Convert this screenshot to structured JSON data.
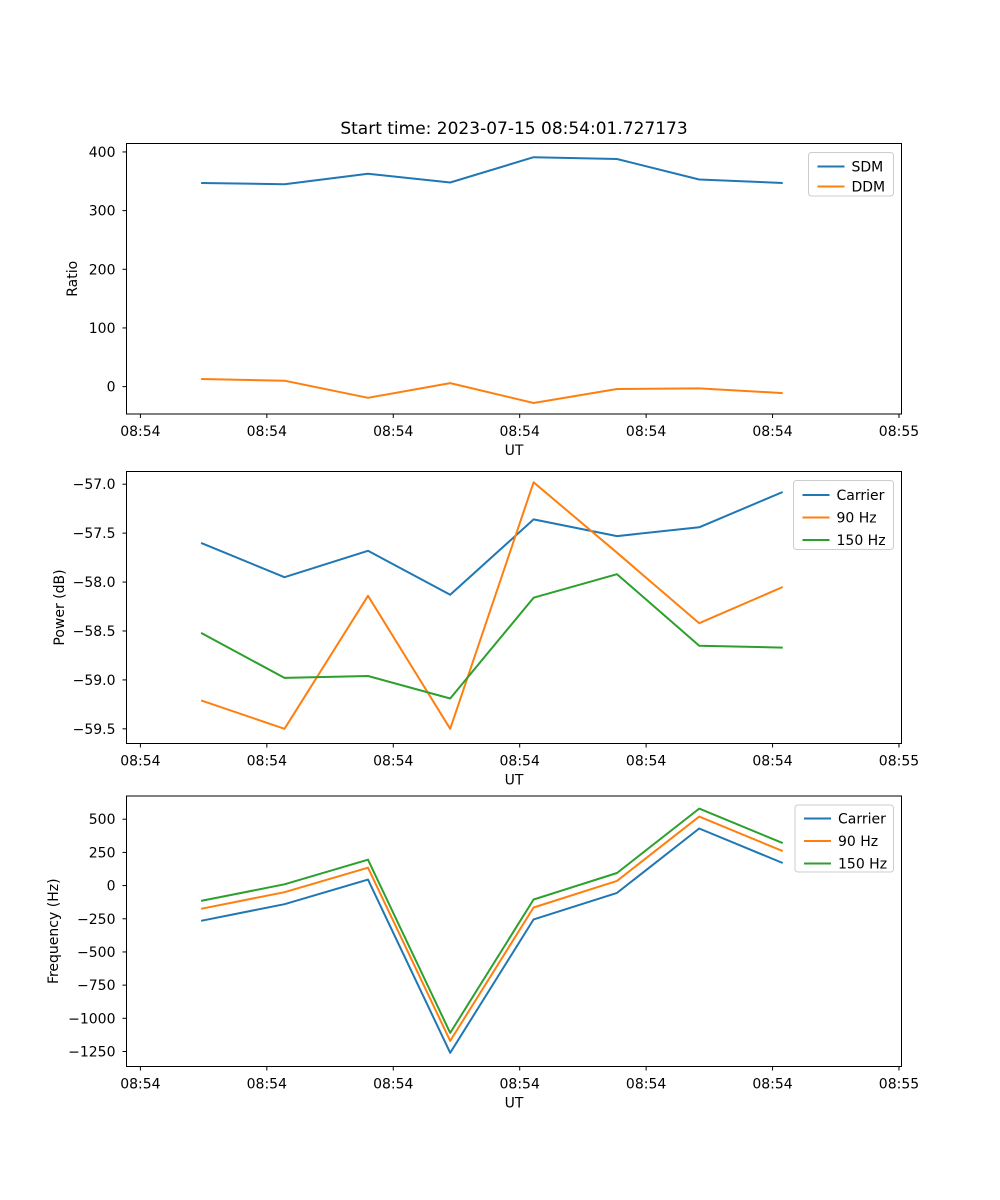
{
  "figure": {
    "title": "Start time: 2023-07-15 08:54:01.727173",
    "background": "#ffffff"
  },
  "colors": {
    "blue": "#1f77b4",
    "orange": "#ff7f0e",
    "green": "#2ca02c"
  },
  "chart_data": [
    {
      "type": "line",
      "title": "Start time: 2023-07-15 08:54:01.727173",
      "xlabel": "UT",
      "ylabel": "Ratio",
      "grid": false,
      "legend_position": "top-right",
      "x_seconds": [
        4.8,
        11.4,
        18.0,
        24.5,
        31.1,
        37.7,
        44.2,
        50.8
      ],
      "xlim_seconds": [
        -1.1,
        60.2
      ],
      "xtick_seconds": [
        0,
        10,
        20,
        30,
        40,
        50,
        60
      ],
      "xtick_labels": [
        "08:54",
        "08:54",
        "08:54",
        "08:54",
        "08:54",
        "08:54",
        "08:55"
      ],
      "ylim": [
        -46.7,
        414.4
      ],
      "ytick_values": [
        0,
        100,
        200,
        300,
        400
      ],
      "ytick_labels": [
        "0",
        "100",
        "200",
        "300",
        "400"
      ],
      "series": [
        {
          "name": "SDM",
          "color": "#1f77b4",
          "values": [
            347,
            345,
            363,
            348,
            391,
            388,
            353,
            347
          ]
        },
        {
          "name": "DDM",
          "color": "#ff7f0e",
          "values": [
            13,
            10,
            -19,
            6,
            -28,
            -4,
            -3,
            -11
          ]
        }
      ]
    },
    {
      "type": "line",
      "title": "",
      "xlabel": "UT",
      "ylabel": "Power (dB)",
      "grid": false,
      "legend_position": "top-right",
      "x_seconds": [
        4.8,
        11.4,
        18.0,
        24.5,
        31.1,
        37.7,
        44.2,
        50.8
      ],
      "xlim_seconds": [
        -1.1,
        60.2
      ],
      "xtick_seconds": [
        0,
        10,
        20,
        30,
        40,
        50,
        60
      ],
      "xtick_labels": [
        "08:54",
        "08:54",
        "08:54",
        "08:54",
        "08:54",
        "08:54",
        "08:55"
      ],
      "ylim": [
        -59.65,
        -56.87
      ],
      "ytick_values": [
        -57.0,
        -57.5,
        -58.0,
        -58.5,
        -59.0,
        -59.5
      ],
      "ytick_labels": [
        "−57.0",
        "−57.5",
        "−58.0",
        "−58.5",
        "−59.0",
        "−59.5"
      ],
      "series": [
        {
          "name": "Carrier",
          "color": "#1f77b4",
          "values": [
            -57.6,
            -57.95,
            -57.68,
            -58.13,
            -57.36,
            -57.53,
            -57.44,
            -57.08
          ]
        },
        {
          "name": "90 Hz",
          "color": "#ff7f0e",
          "values": [
            -59.21,
            -59.5,
            -58.14,
            -59.5,
            -56.98,
            -57.7,
            -58.42,
            -58.05
          ]
        },
        {
          "name": "150 Hz",
          "color": "#2ca02c",
          "values": [
            -58.52,
            -58.98,
            -58.96,
            -59.19,
            -58.16,
            -57.92,
            -58.65,
            -58.67
          ]
        }
      ]
    },
    {
      "type": "line",
      "title": "",
      "xlabel": "UT",
      "ylabel": "Frequency (Hz)",
      "grid": false,
      "legend_position": "top-right",
      "x_seconds": [
        4.8,
        11.4,
        18.0,
        24.5,
        31.1,
        37.7,
        44.2,
        50.8
      ],
      "xlim_seconds": [
        -1.1,
        60.2
      ],
      "xtick_seconds": [
        0,
        10,
        20,
        30,
        40,
        50,
        60
      ],
      "xtick_labels": [
        "08:54",
        "08:54",
        "08:54",
        "08:54",
        "08:54",
        "08:54",
        "08:55"
      ],
      "ylim": [
        -1363,
        675
      ],
      "ytick_values": [
        500,
        250,
        0,
        -250,
        -500,
        -750,
        -1000,
        -1250
      ],
      "ytick_labels": [
        "500",
        "250",
        "0",
        "−250",
        "−500",
        "−750",
        "−1000",
        "−1250"
      ],
      "series": [
        {
          "name": "Carrier",
          "color": "#1f77b4",
          "values": [
            -265,
            -140,
            45,
            -1260,
            -255,
            -55,
            430,
            170
          ]
        },
        {
          "name": "90 Hz",
          "color": "#ff7f0e",
          "values": [
            -175,
            -50,
            135,
            -1170,
            -165,
            35,
            520,
            260
          ]
        },
        {
          "name": "150 Hz",
          "color": "#2ca02c",
          "values": [
            -115,
            10,
            195,
            -1110,
            -105,
            95,
            580,
            320
          ]
        }
      ]
    }
  ]
}
